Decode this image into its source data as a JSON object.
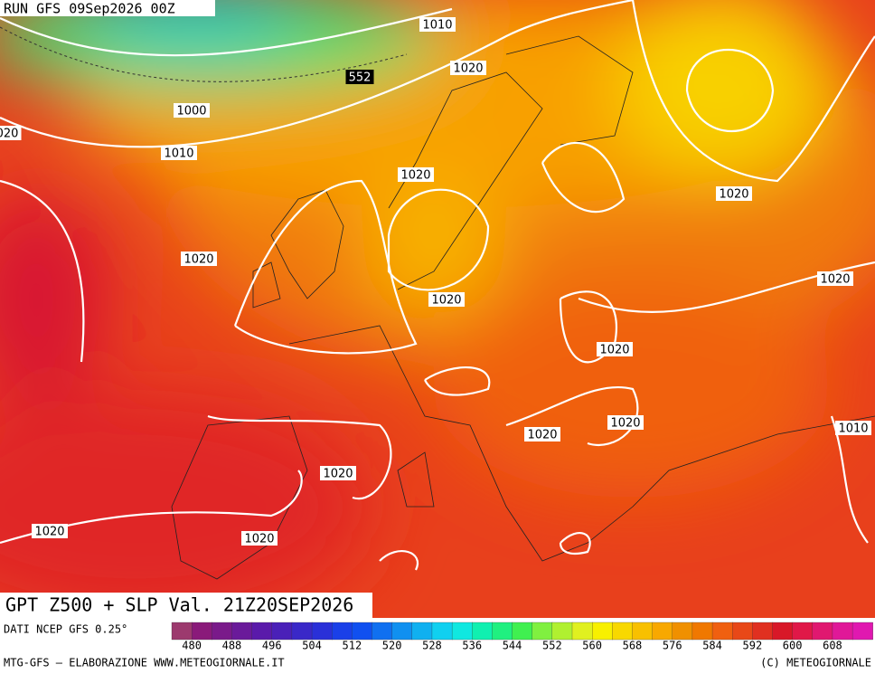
{
  "header": {
    "run": "RUN GFS 09Sep2026 00Z"
  },
  "map": {
    "product": "GPT Z500 + SLP Val. 21Z20SEP2026",
    "isobar_labels": [
      "1010",
      "1020",
      "552",
      "1000",
      "1010",
      "020",
      "1020",
      "1020",
      "1020",
      "1020",
      "1020",
      "1020",
      "1020",
      "1020",
      "1010",
      "1020",
      "1020",
      "1020"
    ]
  },
  "footer": {
    "source": "DATI NCEP GFS 0.25°",
    "credit": "MTG-GFS – ELABORAZIONE WWW.METEOGIORNALE.IT",
    "copyright": "(C) METEOGIORNALE"
  },
  "colorbar": {
    "labels": [
      480,
      488,
      496,
      504,
      512,
      520,
      528,
      536,
      544,
      552,
      560,
      568,
      576,
      584,
      592,
      600,
      608
    ],
    "colors": [
      "#9c3a6e",
      "#8a1a7a",
      "#7a1a8a",
      "#6a1a9a",
      "#5a1aaa",
      "#4a20b8",
      "#3a28c8",
      "#2a30d8",
      "#1a40e8",
      "#1050f0",
      "#1070f0",
      "#1090f0",
      "#10b0f0",
      "#10d0f0",
      "#10e8e0",
      "#10f0b0",
      "#20f080",
      "#40f050",
      "#80f040",
      "#b0f030",
      "#e0f020",
      "#f8f000",
      "#f8d800",
      "#f8c000",
      "#f8a800",
      "#f09000",
      "#f07800",
      "#f06010",
      "#e84818",
      "#e03020",
      "#d81828",
      "#e01848",
      "#e01870",
      "#e01898",
      "#e018b0"
    ]
  }
}
